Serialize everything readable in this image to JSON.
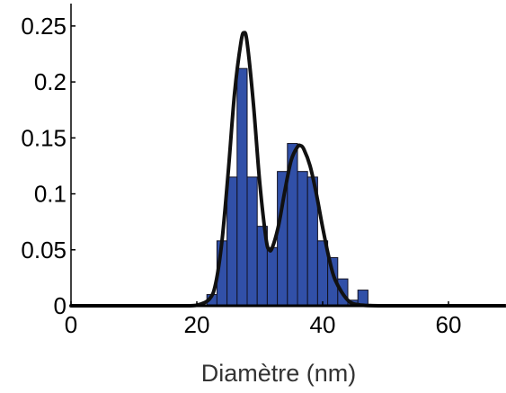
{
  "chart_data": {
    "type": "bar",
    "title": "",
    "xlabel": "Diamètre (nm)",
    "ylabel": "",
    "xlim": [
      0,
      69
    ],
    "ylim": [
      0,
      0.27
    ],
    "grid": false,
    "legend": "none",
    "xticks": [
      0,
      20,
      40,
      60
    ],
    "xtick_labels": [
      "0",
      "20",
      "40",
      "60"
    ],
    "yticks": [
      0,
      0.05,
      0.1,
      0.15,
      0.2,
      0.25
    ],
    "ytick_labels": [
      "0",
      "0.05",
      "0.1",
      "0.15",
      "0.2",
      "0.25"
    ],
    "histogram": {
      "bin_width": 1.6,
      "bin_starts": [
        21.6,
        23.2,
        24.8,
        26.4,
        28.0,
        29.6,
        31.2,
        32.8,
        34.4,
        36.0,
        37.6,
        39.2,
        40.8,
        42.4,
        44.0,
        45.6
      ],
      "values": [
        0.01,
        0.058,
        0.115,
        0.212,
        0.115,
        0.071,
        0.052,
        0.12,
        0.145,
        0.12,
        0.115,
        0.058,
        0.043,
        0.024,
        0.005,
        0.014
      ]
    },
    "fit_curve": {
      "x": [
        0,
        10,
        18,
        20,
        22,
        23,
        24,
        25,
        26,
        27,
        27.5,
        28,
        29,
        30,
        31,
        31.5,
        32,
        33,
        34,
        35,
        36,
        36.5,
        37,
        38,
        39,
        40,
        41,
        42,
        44,
        46,
        50,
        60,
        69
      ],
      "y": [
        0,
        0,
        0,
        0.0005,
        0.006,
        0.02,
        0.058,
        0.12,
        0.19,
        0.235,
        0.244,
        0.235,
        0.18,
        0.11,
        0.06,
        0.05,
        0.052,
        0.072,
        0.103,
        0.13,
        0.142,
        0.143,
        0.14,
        0.125,
        0.1,
        0.07,
        0.043,
        0.023,
        0.005,
        0.0007,
        0,
        0,
        0
      ]
    },
    "colors": {
      "bar_fill": "#3150A8",
      "bar_stroke": "#111122",
      "curve": "#111111",
      "axis": "#000000"
    }
  }
}
